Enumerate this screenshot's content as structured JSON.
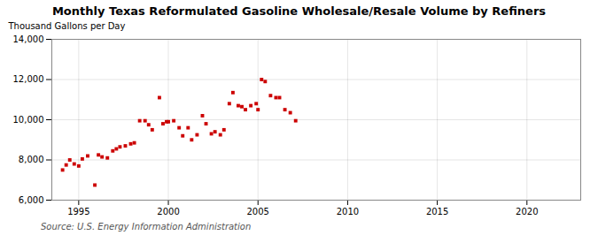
{
  "chart_data": {
    "type": "scatter",
    "title": "Monthly Texas Reformulated Gasoline Wholesale/Resale Volume by Refiners",
    "ylabel": "Thousand Gallons per Day",
    "annotation": "Source: U.S. Energy Information Administration",
    "color": "#cc0000",
    "marker": "square",
    "grid": true,
    "xlim": [
      1993.5,
      2023
    ],
    "ylim": [
      6000,
      14000
    ],
    "xticks": [
      1995,
      2000,
      2005,
      2010,
      2015,
      2020
    ],
    "yticks": [
      {
        "value": 6000,
        "label": "6,000"
      },
      {
        "value": 8000,
        "label": "8,000"
      },
      {
        "value": 10000,
        "label": "10,000"
      },
      {
        "value": 12000,
        "label": "12,000"
      },
      {
        "value": 14000,
        "label": "14,000"
      }
    ],
    "x": [
      1994.1,
      1994.3,
      1994.5,
      1994.75,
      1995.0,
      1995.2,
      1995.5,
      1995.9,
      1996.1,
      1996.3,
      1996.6,
      1996.9,
      1997.1,
      1997.3,
      1997.6,
      1997.9,
      1998.1,
      1998.4,
      1998.7,
      1998.9,
      1999.1,
      1999.5,
      1999.7,
      1999.9,
      2000.0,
      2000.3,
      2000.6,
      2000.8,
      2001.1,
      2001.3,
      2001.6,
      2001.9,
      2002.1,
      2002.4,
      2002.6,
      2002.9,
      2003.1,
      2003.4,
      2003.6,
      2003.9,
      2004.1,
      2004.3,
      2004.6,
      2004.9,
      2005.0,
      2005.2,
      2005.4,
      2005.7,
      2006.0,
      2006.2,
      2006.5,
      2006.8,
      2007.1
    ],
    "values": [
      7500,
      7750,
      8000,
      7800,
      7700,
      8050,
      8200,
      6750,
      8250,
      8150,
      8100,
      8450,
      8550,
      8650,
      8700,
      8800,
      8850,
      9950,
      9950,
      9750,
      9500,
      11100,
      9800,
      9900,
      9900,
      9950,
      9600,
      9200,
      9600,
      9000,
      9250,
      10200,
      9800,
      9300,
      9400,
      9250,
      9500,
      10800,
      11350,
      10700,
      10650,
      10500,
      10700,
      10800,
      10500,
      12000,
      11900,
      11200,
      11100,
      11100,
      10500,
      10350,
      9950
    ]
  }
}
